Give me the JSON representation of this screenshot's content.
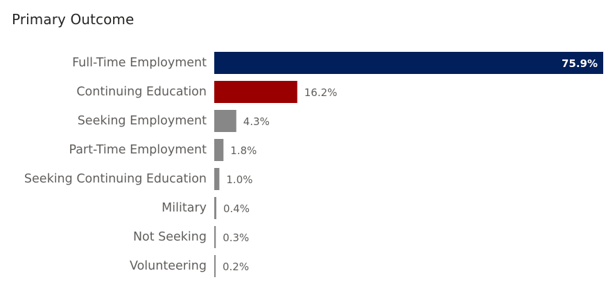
{
  "chart_data": {
    "type": "bar",
    "orientation": "horizontal",
    "title": "Primary Outcome",
    "categories": [
      "Full-Time Employment",
      "Continuing Education",
      "Seeking Employment",
      "Part-Time Employment",
      "Seeking Continuing Education",
      "Military",
      "Not Seeking",
      "Volunteering"
    ],
    "values": [
      75.9,
      16.2,
      4.3,
      1.8,
      1.0,
      0.4,
      0.3,
      0.2
    ],
    "value_labels": [
      "75.9%",
      "16.2%",
      "4.3%",
      "1.8%",
      "1.0%",
      "0.4%",
      "0.3%",
      "0.2%"
    ],
    "bar_colors": [
      "#001f5b",
      "#9b0000",
      "#878787",
      "#878787",
      "#878787",
      "#878787",
      "#878787",
      "#878787"
    ],
    "xlim": [
      0,
      75.9
    ],
    "grid": false,
    "legend": "none"
  }
}
